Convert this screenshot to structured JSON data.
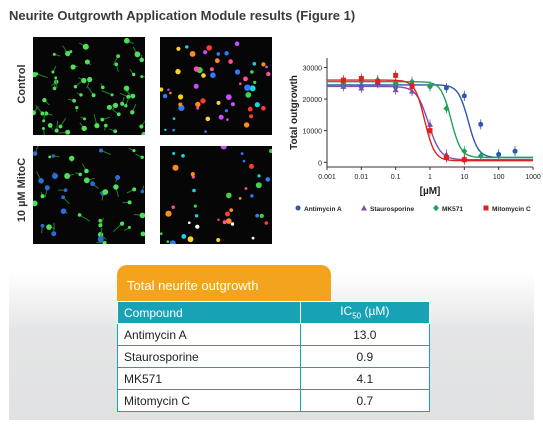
{
  "figure": {
    "title": "Neurite Outgrowth Application Module results (Figure 1)"
  },
  "images": {
    "row_labels": [
      "Control",
      "10 µM MitoC"
    ],
    "panels": [
      {
        "row": 0,
        "col": 0,
        "style": "green-neurites"
      },
      {
        "row": 0,
        "col": 1,
        "style": "segmented-colored"
      },
      {
        "row": 1,
        "col": 0,
        "style": "green-neurites"
      },
      {
        "row": 1,
        "col": 1,
        "style": "segmented-colored"
      }
    ]
  },
  "chart_data": {
    "type": "scatter",
    "title": "",
    "xlabel": "[µM]",
    "ylabel": "Total outgrowth",
    "x_scale": "log",
    "xlim": [
      0.001,
      1000
    ],
    "ylim": [
      -1500,
      33000
    ],
    "x_ticks": [
      "0.001",
      "0.01",
      "0.1",
      "1",
      "10",
      "100",
      "1000"
    ],
    "y_ticks": [
      "0",
      "10000",
      "20000",
      "30000"
    ],
    "y_tick_values": [
      0,
      10000,
      20000,
      30000
    ],
    "grid": false,
    "legend_position": "bottom",
    "series": [
      {
        "name": "Antimycin A",
        "color": "#2f55b0",
        "marker": "circle",
        "top": 24500,
        "bottom": 1500,
        "ic50": 13.0,
        "hill": 3,
        "x": [
          0.003,
          0.01,
          0.03,
          0.1,
          0.3,
          1,
          3,
          10,
          30,
          100,
          300
        ],
        "y": [
          24500,
          24000,
          25000,
          23800,
          24500,
          24000,
          23500,
          21000,
          12000,
          2500,
          3500
        ]
      },
      {
        "name": "Staurosporine",
        "color": "#7a4fb0",
        "marker": "triangle",
        "top": 24000,
        "bottom": 800,
        "ic50": 0.9,
        "hill": 2.5,
        "x": [
          0.003,
          0.01,
          0.03,
          0.1,
          0.3,
          1,
          3,
          10
        ],
        "y": [
          24000,
          23500,
          25500,
          23000,
          22500,
          12000,
          2500,
          1200
        ]
      },
      {
        "name": "MK571",
        "color": "#22a05a",
        "marker": "diamond",
        "top": 25500,
        "bottom": 1500,
        "ic50": 4.1,
        "hill": 3,
        "x": [
          0.003,
          0.01,
          0.03,
          0.1,
          0.3,
          1,
          3,
          10,
          30
        ],
        "y": [
          25000,
          25500,
          26000,
          25000,
          25500,
          24000,
          17000,
          3500,
          2000
        ]
      },
      {
        "name": "Mitomycin C",
        "color": "#e02020",
        "marker": "square",
        "top": 26000,
        "bottom": 500,
        "ic50": 0.7,
        "hill": 3,
        "x": [
          0.003,
          0.01,
          0.03,
          0.1,
          0.3,
          1,
          3,
          10
        ],
        "y": [
          26000,
          26500,
          25500,
          27500,
          24000,
          10000,
          1500,
          800
        ]
      }
    ]
  },
  "table": {
    "tab_label": "Total neurite outgrowth",
    "headers": {
      "compound": "Compound",
      "ic50_prefix": "IC",
      "ic50_sub": "50",
      "ic50_suffix": " (µM)"
    },
    "rows": [
      {
        "compound": "Antimycin A",
        "ic50": "13.0"
      },
      {
        "compound": "Staurosporine",
        "ic50": "0.9"
      },
      {
        "compound": "MK571",
        "ic50": "4.1"
      },
      {
        "compound": "Mitomycin C",
        "ic50": "0.7"
      }
    ]
  }
}
